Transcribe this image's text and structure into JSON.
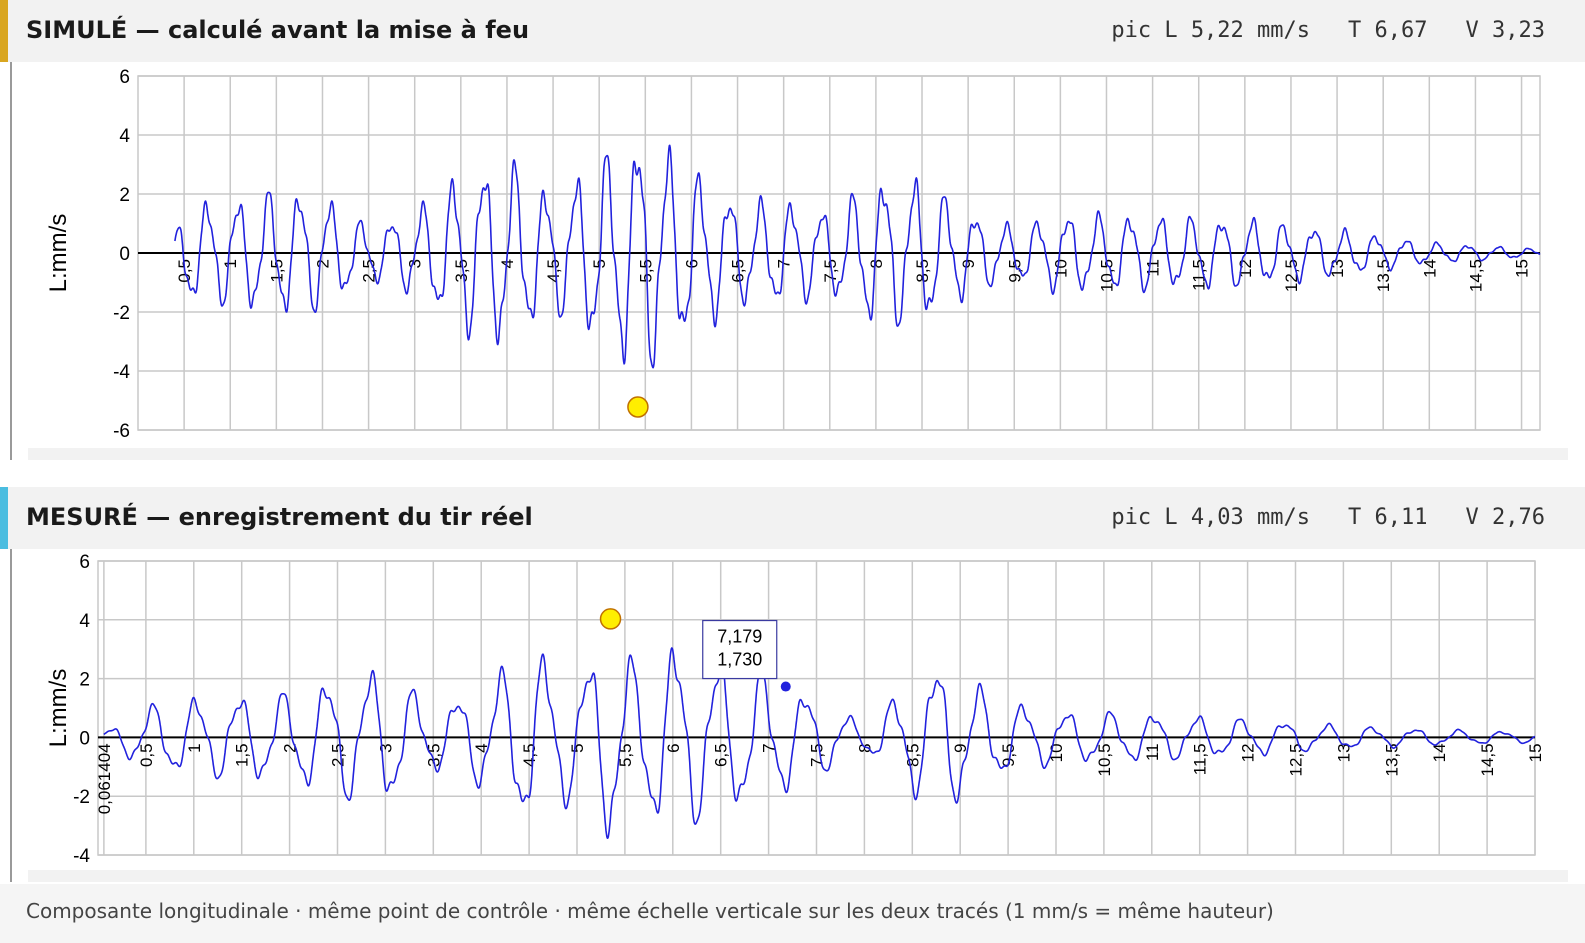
{
  "colors": {
    "signal": "#2222dd",
    "grid": "#c8c8c8",
    "accent_simule": "#d9a620",
    "accent_mesure": "#4bbde0",
    "peak_marker": "#ffee00"
  },
  "panels": [
    {
      "title": "SIMULÉ — calculé avant la mise à feu",
      "stats": [
        "pic L 5,22 mm/s",
        "T 6,67",
        "V 3,23"
      ]
    },
    {
      "title": "MESURÉ — enregistrement du tir réel",
      "stats": [
        "pic L 4,03 mm/s",
        "T 6,11",
        "V 2,76"
      ]
    }
  ],
  "footer": "Composante longitudinale · même point de contrôle · même échelle verticale sur les deux tracés (1 mm/s = même hauteur)",
  "chart_data": [
    {
      "type": "line",
      "ylabel": "L:mm/s",
      "ylim": [
        -6,
        6
      ],
      "yticks": [
        "6",
        "4",
        "2",
        "0",
        "-2",
        "-4",
        "-6"
      ],
      "xlim": [
        0,
        15.2
      ],
      "xticks": [
        "0,5",
        "1",
        "1,5",
        "2",
        "2,5",
        "3",
        "3,5",
        "4",
        "4,5",
        "5",
        "5,5",
        "6",
        "6,5",
        "7",
        "7,5",
        "8",
        "8,5",
        "9",
        "9,5",
        "10",
        "10,5",
        "11",
        "11,5",
        "12",
        "12,5",
        "13",
        "13,5",
        "14",
        "14,5",
        "15"
      ],
      "grid": true,
      "signal": {
        "start": 0.4,
        "end": 15.2,
        "freq_hz": 3.0,
        "envelope": [
          [
            0.4,
            0.5
          ],
          [
            0.5,
            1.9
          ],
          [
            1.0,
            2.0
          ],
          [
            1.5,
            2.4
          ],
          [
            2.0,
            2.2
          ],
          [
            2.5,
            1.0
          ],
          [
            3.0,
            1.6
          ],
          [
            3.5,
            3.0
          ],
          [
            4.0,
            3.6
          ],
          [
            4.5,
            2.2
          ],
          [
            5.0,
            3.6
          ],
          [
            5.5,
            4.6
          ],
          [
            6.0,
            3.2
          ],
          [
            6.5,
            2.0
          ],
          [
            7.0,
            2.0
          ],
          [
            7.5,
            1.6
          ],
          [
            8.0,
            2.8
          ],
          [
            8.5,
            2.8
          ],
          [
            9.0,
            1.6
          ],
          [
            9.5,
            1.0
          ],
          [
            10.0,
            1.5
          ],
          [
            11.0,
            1.4
          ],
          [
            12.0,
            1.3
          ],
          [
            13.0,
            0.9
          ],
          [
            14.0,
            0.4
          ],
          [
            15.2,
            0.15
          ]
        ]
      },
      "peak_marker": {
        "x": 5.42,
        "y": -5.22
      }
    },
    {
      "type": "line",
      "ylabel": "L:mm/s",
      "ylim": [
        -4,
        6
      ],
      "yticks": [
        "6",
        "4",
        "2",
        "0",
        "-2",
        "-4"
      ],
      "xlim": [
        0,
        15
      ],
      "xticks": [
        "0,061404",
        "0,5",
        "1",
        "1,5",
        "2",
        "2,5",
        "3",
        "3,5",
        "4",
        "4,5",
        "5",
        "5,5",
        "6",
        "6,5",
        "7",
        "7,5",
        "8",
        "8,5",
        "9",
        "9,5",
        "10",
        "10,5",
        "11",
        "11,5",
        "12",
        "12,5",
        "13",
        "13,5",
        "14",
        "14,5",
        "15"
      ],
      "grid": true,
      "signal": {
        "start": 0.06,
        "end": 15.0,
        "freq_hz": 2.2,
        "envelope": [
          [
            0.06,
            0.2
          ],
          [
            0.5,
            1.2
          ],
          [
            1.0,
            1.5
          ],
          [
            2.0,
            1.7
          ],
          [
            2.5,
            2.3
          ],
          [
            3.0,
            2.6
          ],
          [
            3.5,
            1.2
          ],
          [
            4.0,
            1.9
          ],
          [
            4.5,
            3.4
          ],
          [
            5.0,
            2.3
          ],
          [
            5.35,
            4.0
          ],
          [
            5.6,
            2.8
          ],
          [
            6.0,
            3.6
          ],
          [
            6.5,
            2.9
          ],
          [
            7.0,
            2.4
          ],
          [
            7.5,
            1.5
          ],
          [
            8.0,
            0.5
          ],
          [
            8.5,
            2.1
          ],
          [
            8.8,
            2.9
          ],
          [
            9.2,
            1.9
          ],
          [
            9.5,
            1.4
          ],
          [
            10.0,
            1.0
          ],
          [
            11.0,
            0.9
          ],
          [
            12.0,
            0.7
          ],
          [
            13.0,
            0.45
          ],
          [
            14.0,
            0.3
          ],
          [
            15.0,
            0.2
          ]
        ]
      },
      "peak_marker": {
        "x": 5.35,
        "y": 4.03
      },
      "tooltip": {
        "x": 7.179,
        "y": 1.73,
        "line1": "7,179",
        "line2": "1,730"
      }
    }
  ]
}
